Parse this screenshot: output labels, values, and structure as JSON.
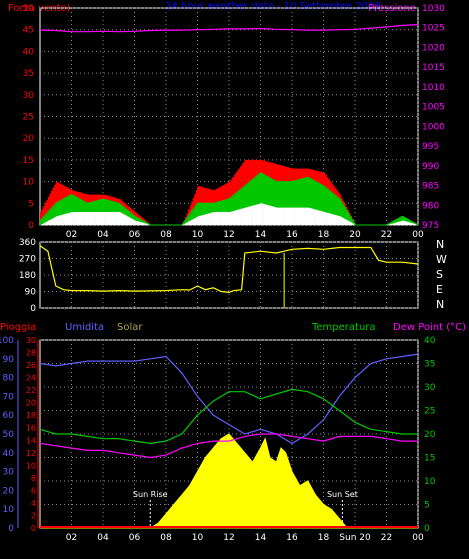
{
  "chart_data": [
    {
      "type": "line",
      "title": "24 hour weather data - 10 Settembre 2018",
      "left_label": "Forza vento)",
      "right_label": "Pressione",
      "left_ticks": [
        0,
        5,
        10,
        15,
        20,
        25,
        30,
        35,
        40,
        45,
        50
      ],
      "right_ticks": [
        975,
        980,
        985,
        990,
        995,
        1000,
        1005,
        1010,
        1015,
        1020,
        1025,
        1030
      ],
      "ylim": [
        0,
        50
      ],
      "ylim_right": [
        975,
        1030
      ],
      "x_ticks": [
        "02",
        "04",
        "06",
        "08",
        "10",
        "12",
        "14",
        "16",
        "18",
        "20",
        "22",
        "00"
      ],
      "xlim": [
        0,
        24
      ],
      "colors": {
        "wind": "#ff0000",
        "gust": "#00c800",
        "wind_avg": "#ffffff",
        "pressure": "#ff00ff",
        "title": "#0000ff",
        "axes": "#ffffff",
        "grid": "#909090"
      },
      "series": [
        {
          "key": "pressure",
          "axis": "right",
          "x": [
            0,
            1,
            2,
            3,
            4,
            5,
            6,
            7,
            8,
            9,
            10,
            11,
            12,
            13,
            14,
            15,
            16,
            17,
            18,
            19,
            20,
            21,
            22,
            23,
            24
          ],
          "values": [
            1024.4,
            1024.3,
            1024.0,
            1024.0,
            1024.1,
            1024.0,
            1024.1,
            1024.3,
            1024.4,
            1024.4,
            1024.5,
            1024.6,
            1024.7,
            1024.7,
            1024.8,
            1024.6,
            1024.5,
            1024.4,
            1024.4,
            1024.5,
            1024.6,
            1024.9,
            1025.2,
            1025.6,
            1025.8
          ]
        },
        {
          "key": "gust",
          "axis": "left",
          "x": [
            0,
            1,
            2,
            3,
            4,
            5,
            6,
            7,
            8,
            9,
            10,
            11,
            12,
            13,
            14,
            15,
            16,
            17,
            18,
            19,
            20,
            21,
            22,
            23,
            24
          ],
          "values": [
            1,
            5,
            7,
            5,
            6,
            5,
            2,
            0,
            0,
            0,
            5,
            5,
            6,
            9,
            12,
            10,
            10,
            11,
            9,
            6,
            0,
            0,
            0,
            2,
            0
          ]
        },
        {
          "key": "wind_avg",
          "axis": "left",
          "x": [
            0,
            1,
            2,
            3,
            4,
            5,
            6,
            7,
            8,
            9,
            10,
            11,
            12,
            13,
            14,
            15,
            16,
            17,
            18,
            19,
            20,
            21,
            22,
            23,
            24
          ],
          "values": [
            0,
            2,
            3,
            3,
            3,
            3,
            1,
            0,
            0,
            0,
            2,
            3,
            3,
            4,
            5,
            4,
            4,
            4,
            3,
            2,
            0,
            0,
            0,
            1,
            0
          ]
        },
        {
          "key": "wind",
          "axis": "left",
          "x": [
            0,
            1,
            2,
            3,
            4,
            5,
            6,
            7,
            8,
            9,
            10,
            11,
            12,
            13,
            14,
            15,
            16,
            17,
            18,
            19,
            20,
            21,
            22,
            23,
            24
          ],
          "values": [
            3,
            10,
            8,
            7,
            7,
            6,
            3,
            0,
            0,
            0,
            9,
            8,
            10,
            15,
            15,
            14,
            13,
            13,
            12,
            7,
            0,
            0,
            0,
            2,
            0
          ]
        }
      ]
    },
    {
      "type": "line",
      "title": "",
      "left_ticks": [
        0,
        90,
        180,
        270,
        360
      ],
      "right_ticks": [
        "N",
        "W",
        "S",
        "E",
        "N"
      ],
      "ylim": [
        0,
        360
      ],
      "x_ticks": [
        "02",
        "04",
        "06",
        "08",
        "10",
        "12",
        "14",
        "16",
        "18",
        "20",
        "22",
        "00"
      ],
      "xlim": [
        0,
        24
      ],
      "colors": {
        "direction": "#ffff00"
      },
      "series": [
        {
          "key": "direction",
          "x": [
            0,
            0.5,
            1,
            1.5,
            2,
            3,
            4,
            5,
            6,
            7,
            8,
            9,
            9.5,
            10,
            10.5,
            11,
            11.5,
            12,
            12.3,
            12.8,
            13,
            14,
            15,
            15.5,
            16,
            17,
            18,
            19,
            20,
            21,
            21.5,
            22,
            23,
            24
          ],
          "values": [
            340,
            310,
            120,
            100,
            95,
            95,
            92,
            95,
            92,
            93,
            95,
            100,
            98,
            120,
            100,
            110,
            90,
            85,
            95,
            100,
            300,
            310,
            300,
            310,
            320,
            325,
            320,
            330,
            330,
            330,
            260,
            250,
            250,
            240
          ]
        }
      ]
    },
    {
      "type": "area",
      "title": "",
      "labels": {
        "rain": "Pioggia",
        "humidity": "Umidita",
        "solar": "Solar",
        "temperature": "Temperatura",
        "dewpoint": "Dew Point (°C)"
      },
      "left_outer_ticks": [
        0,
        10,
        20,
        30,
        40,
        50,
        60,
        70,
        80,
        90,
        100
      ],
      "left_inner_ticks": [
        0,
        2,
        4,
        6,
        8,
        10,
        12,
        14,
        16,
        18,
        20,
        22,
        24,
        26,
        28,
        30
      ],
      "right_ticks": [
        0,
        5,
        10,
        15,
        20,
        25,
        30,
        35,
        40
      ],
      "ylim": [
        0,
        40
      ],
      "x_ticks": [
        "02",
        "04",
        "06",
        "08",
        "10",
        "12",
        "14",
        "16",
        "18",
        "Sun 20",
        "22",
        "00"
      ],
      "xlim": [
        0,
        24
      ],
      "annotations": [
        "Sun Rise",
        "Sun Set"
      ],
      "annotation_x": [
        7.0,
        19.2
      ],
      "colors": {
        "humidity": "#6060ff",
        "temperature": "#00c800",
        "dewpoint": "#ff00ff",
        "solar": "#ffff00",
        "rain": "#ff0000",
        "outer_axis": "#6060ff",
        "inner_axis": "#ff0000",
        "right_axis": "#00c800",
        "annotation": "#ffffff"
      },
      "series": [
        {
          "key": "solar",
          "name": "Solar",
          "x": [
            0,
            7,
            7.5,
            8,
            8.5,
            9,
            9.5,
            10,
            10.5,
            11,
            11.5,
            12,
            12.5,
            13,
            13.5,
            14,
            14.3,
            14.6,
            15,
            15.3,
            15.6,
            16,
            16.5,
            17,
            17.5,
            18,
            18.5,
            19,
            19.5,
            24
          ],
          "values": [
            0,
            0,
            1,
            3,
            5,
            7,
            9,
            12,
            15,
            17,
            19,
            20,
            18,
            16,
            14,
            17,
            19,
            15,
            14,
            17,
            16,
            12,
            9,
            10,
            7,
            5,
            4,
            2,
            0,
            0
          ]
        },
        {
          "key": "humidity",
          "name": "Umidita",
          "x": [
            0,
            1,
            2,
            3,
            4,
            5,
            6,
            7,
            8,
            9,
            10,
            11,
            12,
            13,
            14,
            15,
            16,
            17,
            18,
            19,
            20,
            21,
            22,
            23,
            24
          ],
          "values": [
            35,
            34.5,
            35,
            35.5,
            35.5,
            35.5,
            35.5,
            36,
            36.5,
            33,
            28,
            24,
            22,
            20,
            21,
            20,
            18,
            20,
            23,
            28,
            32,
            35,
            36,
            36.5,
            37
          ]
        },
        {
          "key": "temperature",
          "name": "Temperatura",
          "x": [
            0,
            1,
            2,
            3,
            4,
            5,
            6,
            7,
            8,
            9,
            10,
            11,
            12,
            13,
            14,
            15,
            16,
            17,
            18,
            19,
            20,
            21,
            22,
            23,
            24
          ],
          "values": [
            21,
            20,
            20,
            19.5,
            19,
            19,
            18.5,
            18,
            18.5,
            20,
            24,
            27,
            29,
            29,
            27.5,
            28.5,
            29.5,
            29,
            27.5,
            25,
            22.5,
            21,
            20.5,
            20,
            20
          ]
        },
        {
          "key": "dewpoint",
          "name": "Dew Point (°C)",
          "x": [
            0,
            1,
            2,
            3,
            4,
            5,
            6,
            7,
            8,
            9,
            10,
            11,
            12,
            13,
            14,
            15,
            16,
            17,
            18,
            19,
            20,
            21,
            22,
            23,
            24
          ],
          "values": [
            18,
            17.5,
            17,
            16.5,
            16.5,
            16,
            15.5,
            15,
            15.5,
            17,
            18,
            18.5,
            18.5,
            19.5,
            20,
            20,
            19.5,
            19,
            18.5,
            19.5,
            19.5,
            19.5,
            19,
            18.5,
            18.5
          ]
        },
        {
          "key": "rain",
          "name": "Pioggia",
          "x": [
            0,
            24
          ],
          "values": [
            0,
            0
          ]
        }
      ]
    }
  ]
}
